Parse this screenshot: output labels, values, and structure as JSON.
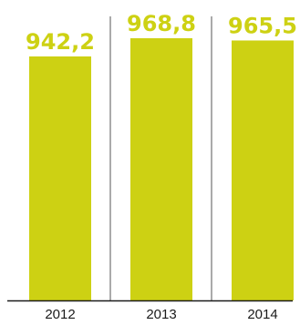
{
  "chart_data": {
    "type": "bar",
    "categories": [
      "2012",
      "2013",
      "2014"
    ],
    "values": [
      942.2,
      968.8,
      965.5
    ],
    "value_labels": [
      "942,2",
      "968,8",
      "965,5"
    ],
    "colors": {
      "bar": "#cdd113",
      "label": "#cdd113",
      "axis": "#1a1a1a",
      "divider": "#555555"
    },
    "grid": false,
    "legend": "none"
  }
}
